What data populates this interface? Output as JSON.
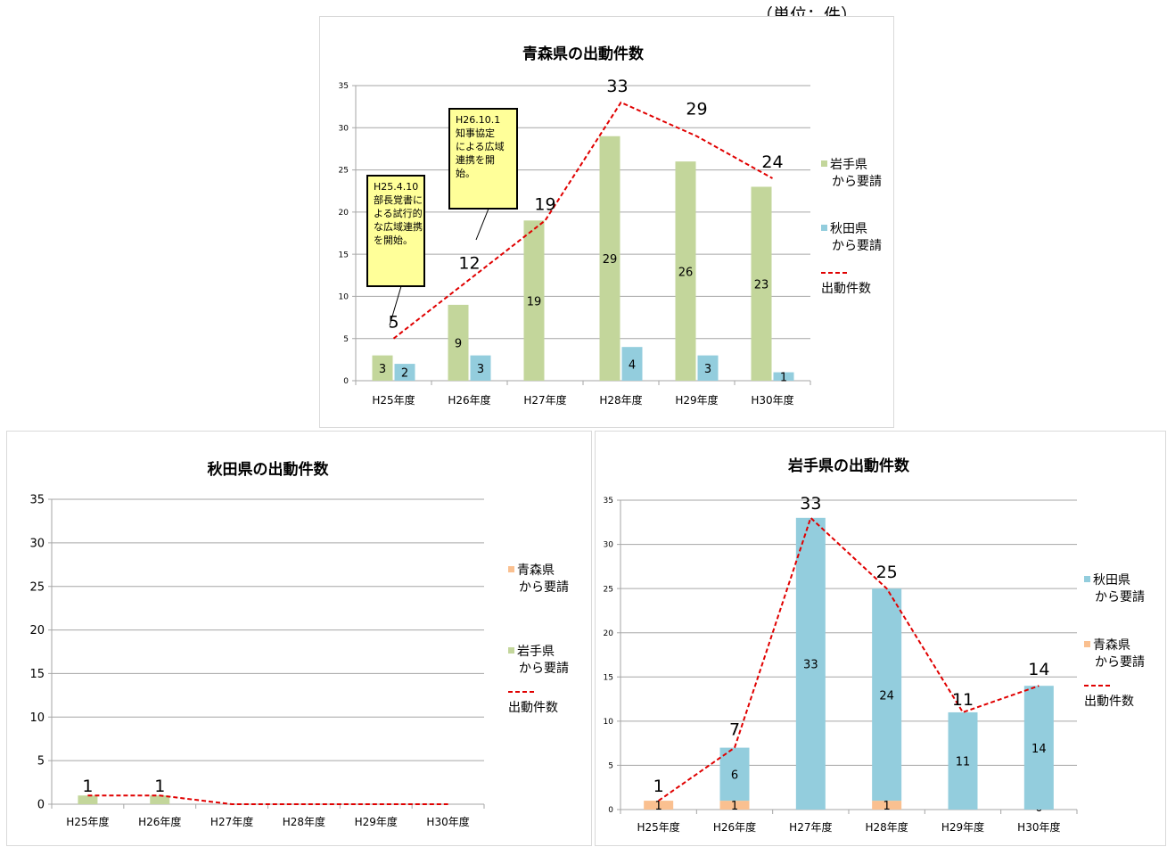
{
  "unit_label": "（単位：件）",
  "colors": {
    "iwate_request": "#c3d69b",
    "akita_request": "#93cddd",
    "aomori_request": "#fac090",
    "dispatch_line": "#e00000",
    "grid": "#a6a6a6",
    "callout_fill": "#ffff99"
  },
  "chart_data": [
    {
      "id": "aomori",
      "type": "bar",
      "title": "青森県の出動件数",
      "categories": [
        "H25年度",
        "H26年度",
        "H27年度",
        "H28年度",
        "H29年度",
        "H30年度"
      ],
      "ylim": [
        0,
        35
      ],
      "yticks": [
        0,
        5,
        10,
        15,
        20,
        25,
        30,
        35
      ],
      "grid": true,
      "legend_position": "right",
      "stacked": false,
      "series": [
        {
          "name": "岩手県から要請",
          "legend_lines": [
            "岩手県",
            "から要請"
          ],
          "color": "#c3d69b",
          "values": [
            3,
            9,
            19,
            29,
            26,
            23
          ],
          "labels": [
            "3",
            "9",
            "19",
            "29",
            "26",
            "23"
          ]
        },
        {
          "name": "秋田県から要請",
          "legend_lines": [
            "秋田県",
            "から要請"
          ],
          "color": "#93cddd",
          "values": [
            2,
            3,
            0,
            4,
            3,
            1
          ],
          "labels": [
            "2",
            "3",
            "",
            "4",
            "3",
            "1"
          ]
        }
      ],
      "line": {
        "name": "出動件数",
        "legend_lines": [
          "出動件数"
        ],
        "color": "#e00000",
        "values": [
          5,
          12,
          19,
          33,
          29,
          24
        ],
        "labels": [
          "5",
          "12",
          "19",
          "33",
          "29",
          "24"
        ]
      },
      "annotations": [
        {
          "lines": [
            "H25.4.10",
            "部長覚書に",
            "よる試行的",
            "な広域連携",
            "を開始。"
          ]
        },
        {
          "lines": [
            "H26.10.1",
            "知事協定",
            "による広域",
            "連携を開",
            "始。"
          ]
        }
      ]
    },
    {
      "id": "akita",
      "type": "bar",
      "title": "秋田県の出動件数",
      "categories": [
        "H25年度",
        "H26年度",
        "H27年度",
        "H28年度",
        "H29年度",
        "H30年度"
      ],
      "ylim": [
        0,
        35
      ],
      "yticks": [
        0,
        5,
        10,
        15,
        20,
        25,
        30,
        35
      ],
      "grid": true,
      "legend_position": "right",
      "stacked": true,
      "series": [
        {
          "name": "青森県から要請",
          "legend_lines": [
            "青森県",
            "から要請"
          ],
          "color": "#fac090",
          "values": [
            0,
            0,
            0,
            0,
            0,
            0
          ],
          "labels": [
            "",
            "",
            "",
            "",
            "",
            ""
          ]
        },
        {
          "name": "岩手県から要請",
          "legend_lines": [
            "岩手県",
            "から要請"
          ],
          "color": "#c3d69b",
          "values": [
            1,
            1,
            0,
            0,
            0,
            0
          ],
          "labels": [
            "",
            "",
            "",
            "",
            "",
            ""
          ]
        }
      ],
      "line": {
        "name": "出動件数",
        "legend_lines": [
          "出動件数"
        ],
        "color": "#e00000",
        "values": [
          1,
          1,
          0,
          0,
          0,
          0
        ],
        "labels": [
          "1",
          "1",
          "",
          "",
          "",
          ""
        ]
      },
      "annotations": []
    },
    {
      "id": "iwate",
      "type": "bar",
      "title": "岩手県の出動件数",
      "categories": [
        "H25年度",
        "H26年度",
        "H27年度",
        "H28年度",
        "H29年度",
        "H30年度"
      ],
      "ylim": [
        0,
        35
      ],
      "yticks": [
        0,
        5,
        10,
        15,
        20,
        25,
        30,
        35
      ],
      "grid": true,
      "legend_position": "right",
      "stacked": true,
      "series": [
        {
          "name": "青森県から要請",
          "legend_lines": [
            "青森県",
            "から要請"
          ],
          "color": "#fac090",
          "values": [
            1,
            1,
            0,
            1,
            0,
            0
          ],
          "labels": [
            "1",
            "1",
            "",
            "1",
            "",
            "0"
          ]
        },
        {
          "name": "秋田県から要請",
          "legend_lines": [
            "秋田県",
            "から要請"
          ],
          "color": "#93cddd",
          "values": [
            0,
            6,
            33,
            24,
            11,
            14
          ],
          "labels": [
            "",
            "6",
            "33",
            "24",
            "11",
            "14"
          ]
        }
      ],
      "line": {
        "name": "出動件数",
        "legend_lines": [
          "出動件数"
        ],
        "color": "#e00000",
        "values": [
          1,
          7,
          33,
          25,
          11,
          14
        ],
        "labels": [
          "1",
          "7",
          "33",
          "25",
          "11",
          "14"
        ]
      },
      "annotations": [],
      "legend_order": [
        1,
        0
      ]
    }
  ]
}
